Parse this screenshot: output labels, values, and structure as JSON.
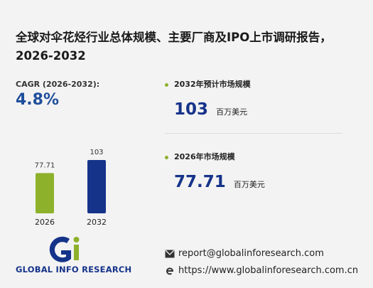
{
  "header": {
    "title": "全球对伞花烃行业总体规模、主要厂商及IPO上市调研报告，2026-2032"
  },
  "cagr": {
    "label": "CAGR (2026-2032):",
    "value": "4.8%"
  },
  "stats": [
    {
      "label": "2032年预计市场规模",
      "value": 103,
      "unit": "百万美元"
    },
    {
      "label": "2026年市场规模",
      "value": 77.71,
      "unit": "百万美元"
    }
  ],
  "chart_data": {
    "type": "bar",
    "categories": [
      "2026",
      "2032"
    ],
    "values": [
      77.71,
      103
    ],
    "colors": [
      "#8db12b",
      "#16338a"
    ]
  },
  "footer": {
    "brand": "GLOBAL INFO RESEARCH",
    "email": "report@globalinforesearch.com",
    "website": "https://www.globalinforesearch.com.cn"
  }
}
